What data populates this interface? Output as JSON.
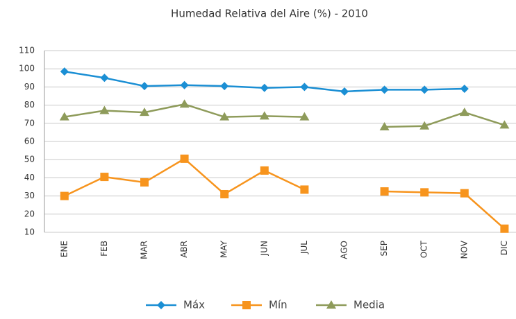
{
  "chart_data": {
    "type": "line",
    "title": "Humedad Relativa del Aire  (%) - 2010",
    "categories": [
      "ENE",
      "FEB",
      "MAR",
      "ABR",
      "MAY",
      "JUN",
      "JUL",
      "AGO",
      "SEP",
      "OCT",
      "NOV",
      "DIC"
    ],
    "series": [
      {
        "name": "Máx",
        "color": "#1b8fd4",
        "marker": "diamond",
        "values": [
          98.5,
          95,
          90.5,
          91,
          90.5,
          89.5,
          90,
          87.5,
          88.5,
          88.5,
          89,
          null
        ]
      },
      {
        "name": "Mín",
        "color": "#f7941d",
        "marker": "square",
        "values": [
          30,
          40.5,
          37.5,
          50.5,
          31,
          44,
          33.5,
          null,
          32.5,
          32,
          31.5,
          12
        ]
      },
      {
        "name": "Media",
        "color": "#8e9b5a",
        "marker": "triangle",
        "values": [
          73.5,
          77,
          76,
          80.5,
          73.5,
          74,
          73.5,
          null,
          68,
          68.5,
          76,
          69
        ]
      }
    ],
    "ylim": [
      10,
      110
    ],
    "yticks": [
      10,
      20,
      30,
      40,
      50,
      60,
      70,
      80,
      90,
      100,
      110
    ],
    "grid": true,
    "legend": "bottom"
  }
}
